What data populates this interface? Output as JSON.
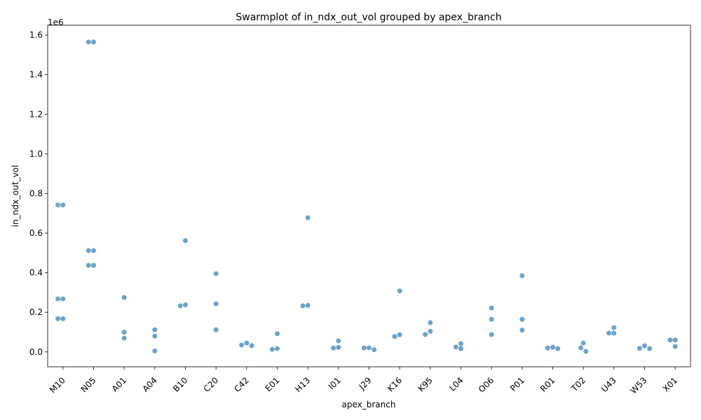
{
  "chart_data": {
    "type": "scatter",
    "title": "Swarmplot of in_ndx_out_vol grouped by apex_branch",
    "xlabel": "apex_branch",
    "ylabel": "in_ndx_out_vol",
    "y_offset_text": "1e6",
    "ylim": [
      -75000,
      1650000
    ],
    "yticks": [
      0.0,
      0.2,
      0.4,
      0.6,
      0.8,
      1.0,
      1.2,
      1.4,
      1.6
    ],
    "ytick_labels": [
      "0.0",
      "0.2",
      "0.4",
      "0.6",
      "0.8",
      "1.0",
      "1.2",
      "1.4",
      "1.6"
    ],
    "tick_scale": 1000000,
    "categories": [
      "M10",
      "N05",
      "A01",
      "A04",
      "B10",
      "C20",
      "C42",
      "E01",
      "H13",
      "I01",
      "J29",
      "K16",
      "K95",
      "L04",
      "O06",
      "P01",
      "R01",
      "T02",
      "U43",
      "W53",
      "X01"
    ],
    "point_color": "#5b9ac7",
    "grid": false,
    "legend": "none",
    "points": [
      {
        "category": "M10",
        "values": [
          742000,
          742000,
          268000,
          268000,
          168000,
          168000
        ]
      },
      {
        "category": "N05",
        "values": [
          1565000,
          1565000,
          512000,
          512000,
          437000,
          437000
        ]
      },
      {
        "category": "A01",
        "values": [
          275000,
          100000,
          70000
        ]
      },
      {
        "category": "A04",
        "values": [
          112000,
          80000,
          5000
        ]
      },
      {
        "category": "B10",
        "values": [
          562000,
          238000,
          233000
        ]
      },
      {
        "category": "C20",
        "values": [
          395000,
          243000,
          112000
        ]
      },
      {
        "category": "C42",
        "values": [
          45000,
          35000,
          32000
        ]
      },
      {
        "category": "E01",
        "values": [
          92000,
          17000,
          13000
        ]
      },
      {
        "category": "H13",
        "values": [
          678000,
          235000,
          233000
        ]
      },
      {
        "category": "I01",
        "values": [
          56000,
          23000,
          20000
        ]
      },
      {
        "category": "J29",
        "values": [
          21000,
          20000,
          11000
        ]
      },
      {
        "category": "K16",
        "values": [
          308000,
          87000,
          78000
        ]
      },
      {
        "category": "K95",
        "values": [
          148000,
          104000,
          88000
        ]
      },
      {
        "category": "L04",
        "values": [
          42000,
          25000,
          17000
        ]
      },
      {
        "category": "O06",
        "values": [
          222000,
          165000,
          88000
        ]
      },
      {
        "category": "P01",
        "values": [
          385000,
          165000,
          110000
        ]
      },
      {
        "category": "R01",
        "values": [
          24000,
          20000,
          17000
        ]
      },
      {
        "category": "T02",
        "values": [
          45000,
          21000,
          3000
        ]
      },
      {
        "category": "U43",
        "values": [
          123000,
          95000,
          95000
        ]
      },
      {
        "category": "W53",
        "values": [
          31000,
          18000,
          17000
        ]
      },
      {
        "category": "X01",
        "values": [
          60000,
          60000,
          28000
        ]
      }
    ]
  }
}
